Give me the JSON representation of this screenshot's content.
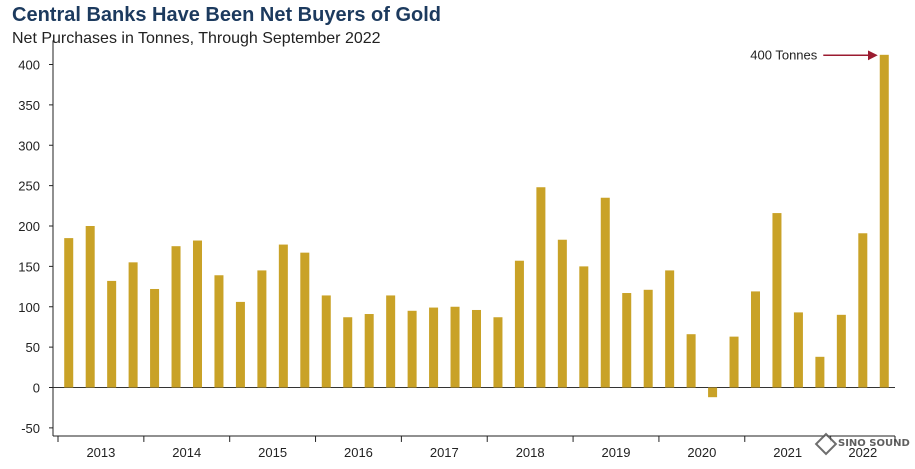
{
  "header": {
    "title": "Central Banks Have Been Net Buyers of Gold",
    "subtitle": "Net Purchases in Tonnes, Through September 2022"
  },
  "annotation": {
    "label": "400 Tonnes",
    "color": "#9b1b30"
  },
  "watermark": {
    "text": "SINO SOUND"
  },
  "chart_data": {
    "type": "bar",
    "bar_color": "#c9a227",
    "ylim": [
      -60,
      420
    ],
    "yticks": [
      -50,
      0,
      50,
      100,
      150,
      200,
      250,
      300,
      350,
      400
    ],
    "year_labels": [
      "2013",
      "2014",
      "2015",
      "2016",
      "2017",
      "2018",
      "2019",
      "2020",
      "2021",
      "2022"
    ],
    "categories": [
      "2013 Q1",
      "2013 Q2",
      "2013 Q3",
      "2013 Q4",
      "2014 Q1",
      "2014 Q2",
      "2014 Q3",
      "2014 Q4",
      "2015 Q1",
      "2015 Q2",
      "2015 Q3",
      "2015 Q4",
      "2016 Q1",
      "2016 Q2",
      "2016 Q3",
      "2016 Q4",
      "2017 Q1",
      "2017 Q2",
      "2017 Q3",
      "2017 Q4",
      "2018 Q1",
      "2018 Q2",
      "2018 Q3",
      "2018 Q4",
      "2019 Q1",
      "2019 Q2",
      "2019 Q3",
      "2019 Q4",
      "2020 Q1",
      "2020 Q2",
      "2020 Q3",
      "2020 Q4",
      "2021 Q1",
      "2021 Q2",
      "2021 Q3",
      "2021 Q4",
      "2022 Q1",
      "2022 Q2",
      "2022 Q3"
    ],
    "values": [
      185,
      200,
      132,
      155,
      122,
      175,
      182,
      139,
      106,
      145,
      177,
      167,
      114,
      87,
      91,
      114,
      95,
      99,
      100,
      96,
      87,
      157,
      248,
      183,
      150,
      235,
      117,
      121,
      145,
      66,
      -12,
      63,
      119,
      216,
      93,
      38,
      90,
      191,
      412
    ]
  }
}
